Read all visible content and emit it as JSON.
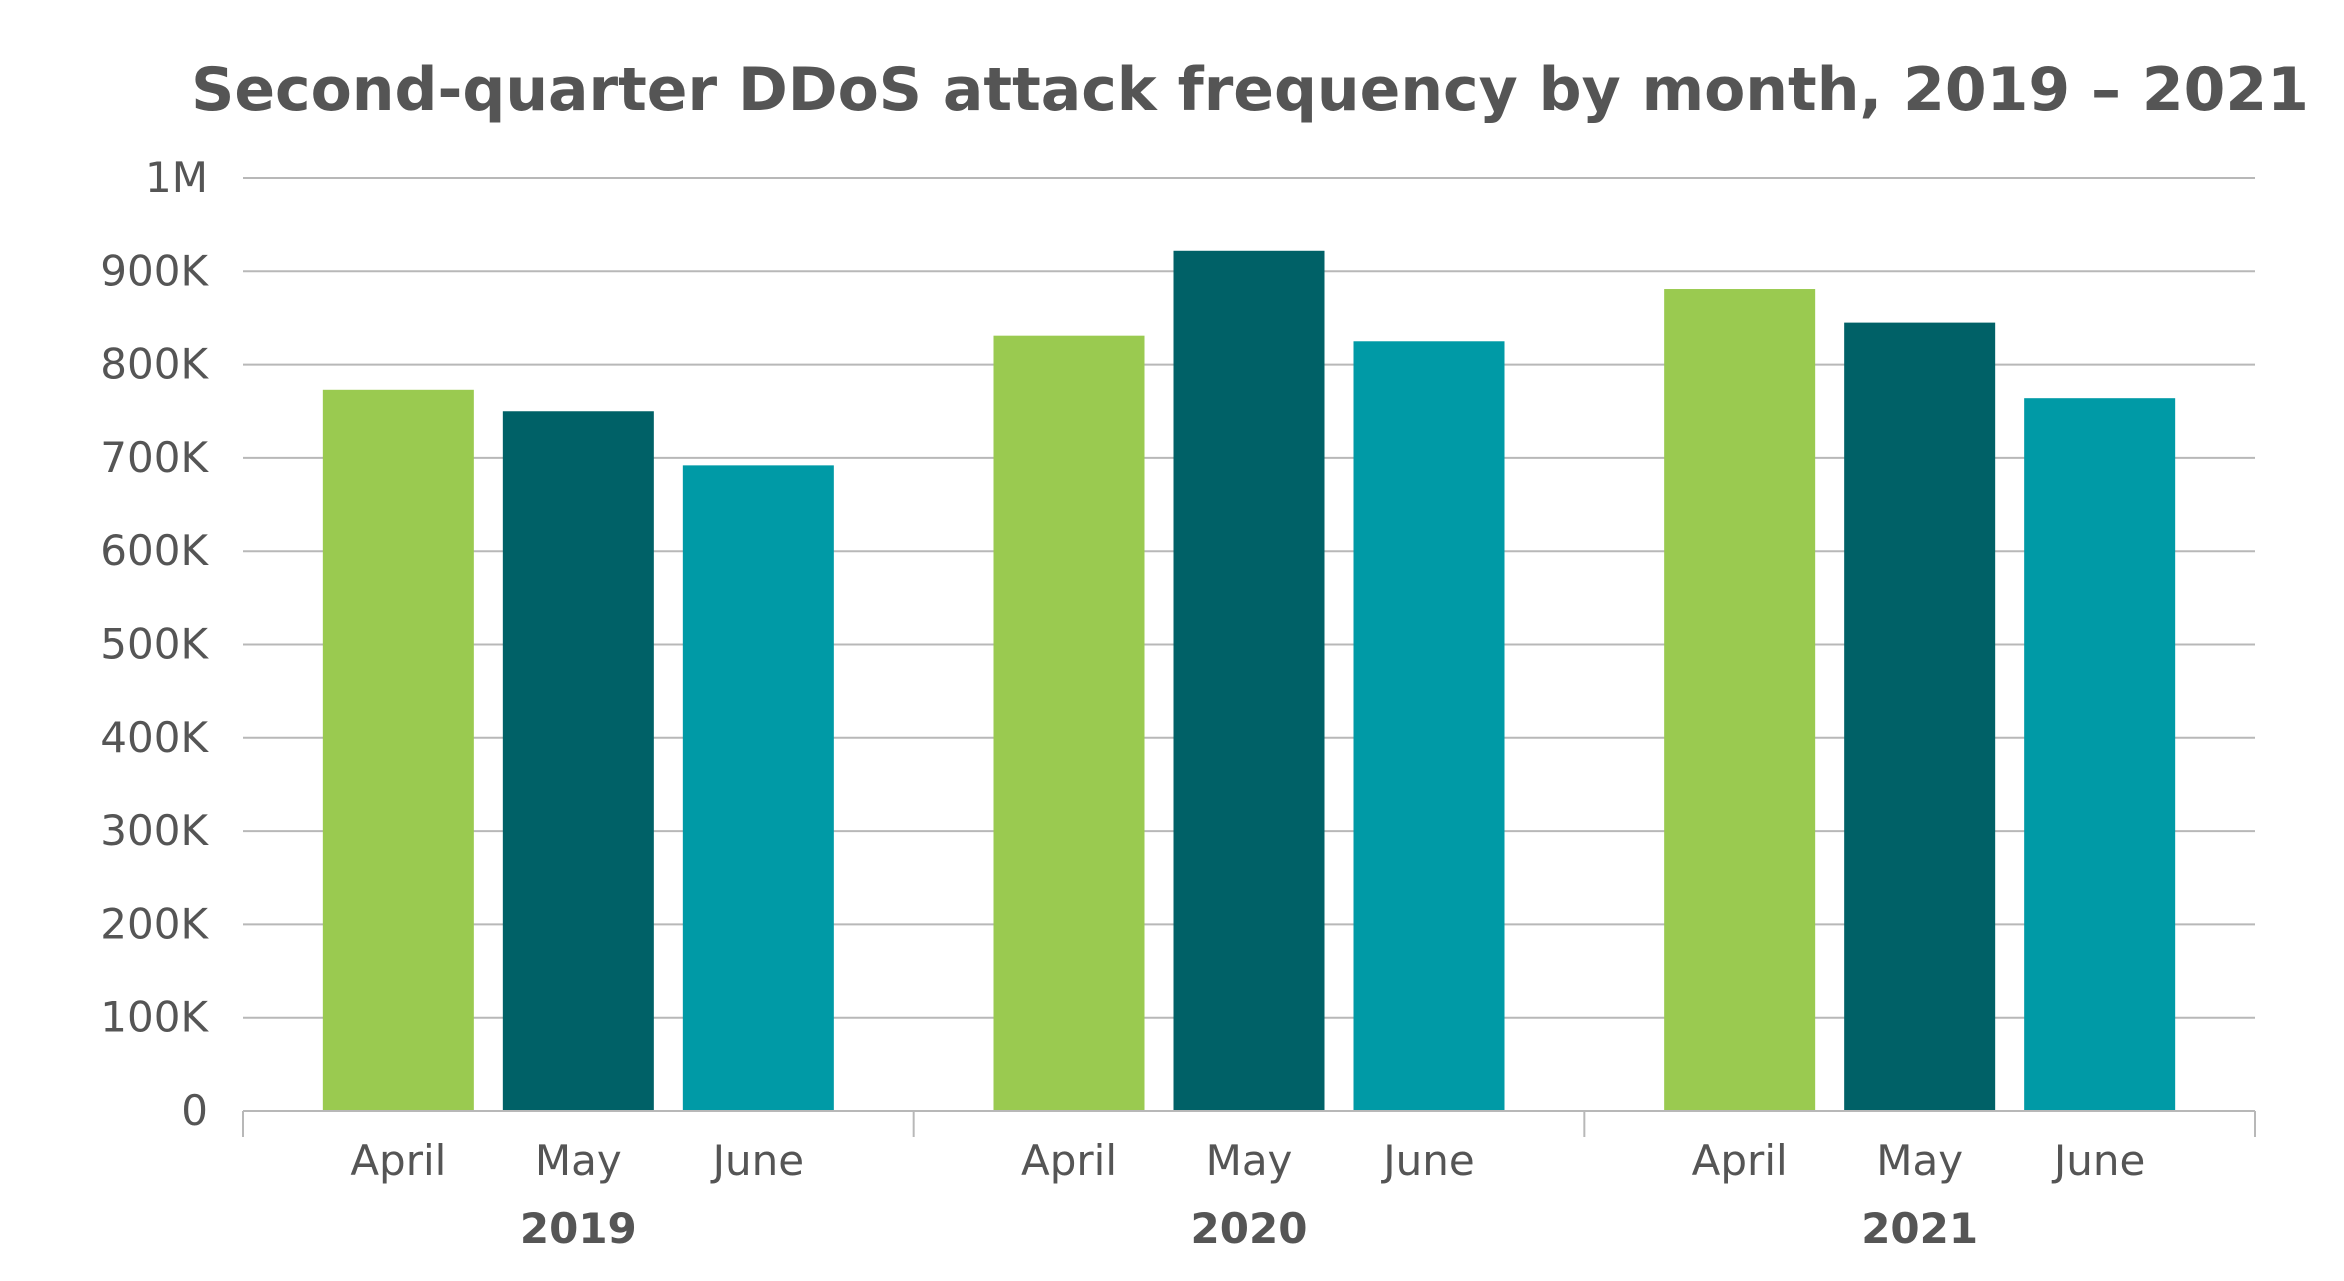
{
  "chart_data": {
    "type": "bar",
    "title": "Second-quarter DDoS attack frequency by month, 2019 – 2021",
    "xlabel": "",
    "ylabel": "",
    "ylim": [
      0,
      1000000
    ],
    "y_ticks": [
      {
        "value": 0,
        "label": "0"
      },
      {
        "value": 100000,
        "label": "100K"
      },
      {
        "value": 200000,
        "label": "200K"
      },
      {
        "value": 300000,
        "label": "300K"
      },
      {
        "value": 400000,
        "label": "400K"
      },
      {
        "value": 500000,
        "label": "500K"
      },
      {
        "value": 600000,
        "label": "600K"
      },
      {
        "value": 700000,
        "label": "700K"
      },
      {
        "value": 800000,
        "label": "800K"
      },
      {
        "value": 900000,
        "label": "900K"
      },
      {
        "value": 1000000,
        "label": "1M"
      }
    ],
    "grid": true,
    "legend": "none",
    "groups": [
      "2019",
      "2020",
      "2021"
    ],
    "categories": [
      "April",
      "May",
      "June"
    ],
    "colors": {
      "April": "#9aca50",
      "May": "#006167",
      "June": "#009aa6",
      "grid": "#b8b8b8",
      "axis": "#b8b8b8",
      "text": "#555555"
    },
    "values": {
      "2019": [
        773000,
        750000,
        692000
      ],
      "2020": [
        831000,
        922000,
        825000
      ],
      "2021": [
        881000,
        845000,
        764000
      ]
    }
  }
}
